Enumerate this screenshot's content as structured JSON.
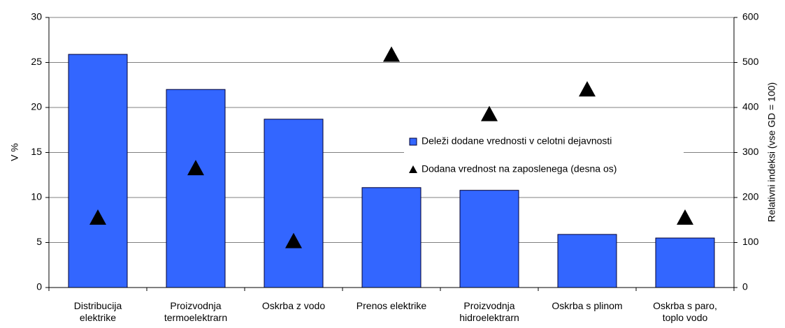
{
  "chart_data": {
    "type": "bar",
    "categories": [
      "Distribucija elektrike",
      "Proizvodnja termoelektrarn",
      "Oskrba z vodo",
      "Prenos elektrike",
      "Proizvodnja hidroelektrarn",
      "Oskrba s plinom",
      "Oskrba s paro, toplo vodo"
    ],
    "series": [
      {
        "name": "Deleži dodane vrednosti v celotni dejavnosti",
        "type": "bar",
        "color": "#3366ff",
        "values": [
          25.9,
          22.0,
          18.7,
          11.1,
          10.8,
          5.9,
          5.5
        ]
      },
      {
        "name": "Dodana vrednost na zaposlenega (desna os)",
        "type": "triangle",
        "color": "#000000",
        "axis": "y2",
        "values": [
          155,
          265,
          103,
          517,
          385,
          440,
          155
        ]
      }
    ],
    "ylabel": "V %",
    "y2label": "Relativni indeksi (vse GD = 100)",
    "ylim": [
      0,
      30
    ],
    "yticks": [
      0,
      5,
      10,
      15,
      20,
      25,
      30
    ],
    "y2lim": [
      0,
      600
    ],
    "y2ticks": [
      0,
      100,
      200,
      300,
      400,
      500,
      600
    ],
    "grid": true
  }
}
